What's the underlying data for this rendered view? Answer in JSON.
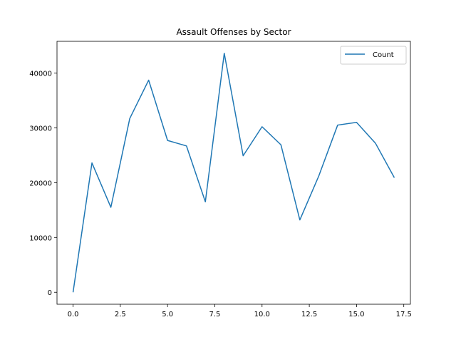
{
  "chart_data": {
    "type": "line",
    "title": "Assault Offenses by Sector",
    "xlabel": "",
    "ylabel": "",
    "x": [
      0,
      1,
      2,
      3,
      4,
      5,
      6,
      7,
      8,
      9,
      10,
      11,
      12,
      13,
      14,
      15,
      16,
      17
    ],
    "series": [
      {
        "name": "Count",
        "color": "#1f77b4",
        "values": [
          0,
          23600,
          15500,
          31700,
          38700,
          27700,
          26700,
          16500,
          43600,
          24900,
          30200,
          26900,
          13200,
          21200,
          30500,
          31000,
          27200,
          20900
        ]
      }
    ],
    "xlim": [
      -0.85,
      17.85
    ],
    "ylim": [
      -2180,
      45780
    ],
    "xticks": [
      0.0,
      2.5,
      5.0,
      7.5,
      10.0,
      12.5,
      15.0,
      17.5
    ],
    "xtick_labels": [
      "0.0",
      "2.5",
      "5.0",
      "7.5",
      "10.0",
      "12.5",
      "15.0",
      "17.5"
    ],
    "yticks": [
      0,
      10000,
      20000,
      30000,
      40000
    ],
    "ytick_labels": [
      "0",
      "10000",
      "20000",
      "30000",
      "40000"
    ],
    "legend_position": "top-right",
    "grid": false
  }
}
